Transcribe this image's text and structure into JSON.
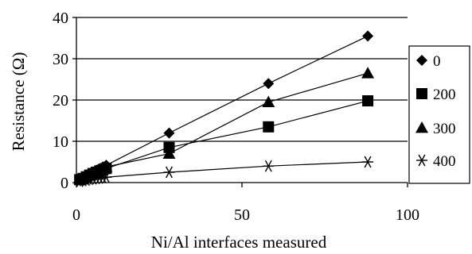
{
  "chart_data": {
    "type": "line",
    "xlabel": "Ni/Al interfaces measured",
    "ylabel": "Resistance (Ω)",
    "xlim": [
      0,
      100
    ],
    "ylim": [
      0,
      40
    ],
    "x_ticks": [
      "0",
      "50",
      "100"
    ],
    "y_ticks": [
      "0",
      "10",
      "20",
      "30",
      "40"
    ],
    "grid": "horizontal",
    "legend_position": "right",
    "series": [
      {
        "name": "0",
        "marker": "diamond",
        "color": "#000000",
        "x": [
          1,
          2,
          3,
          4,
          5,
          6,
          7,
          8,
          9,
          28,
          58,
          88
        ],
        "y": [
          0.9,
          1.3,
          1.8,
          2.2,
          2.6,
          3.0,
          3.4,
          3.8,
          4.2,
          12,
          24,
          35.5
        ]
      },
      {
        "name": "200",
        "marker": "square",
        "color": "#000000",
        "x": [
          1,
          2,
          3,
          4,
          5,
          6,
          7,
          8,
          9,
          28,
          58,
          88
        ],
        "y": [
          0.7,
          1.0,
          1.4,
          1.8,
          2.2,
          2.5,
          2.8,
          3.1,
          3.4,
          8.5,
          13.5,
          19.8
        ]
      },
      {
        "name": "300",
        "marker": "triangle",
        "color": "#000000",
        "x": [
          1,
          2,
          3,
          4,
          5,
          6,
          7,
          8,
          9,
          28,
          58,
          88
        ],
        "y": [
          0.8,
          1.1,
          1.5,
          2.0,
          2.4,
          2.8,
          3.1,
          3.5,
          3.8,
          7.0,
          19.5,
          26.5
        ]
      },
      {
        "name": "400",
        "marker": "asterisk",
        "color": "#000000",
        "x": [
          1,
          2,
          3,
          4,
          5,
          6,
          7,
          8,
          9,
          28,
          58,
          88
        ],
        "y": [
          0.3,
          0.5,
          0.6,
          0.8,
          0.9,
          1.0,
          1.1,
          1.2,
          1.3,
          2.5,
          4.0,
          5.0
        ]
      }
    ]
  }
}
